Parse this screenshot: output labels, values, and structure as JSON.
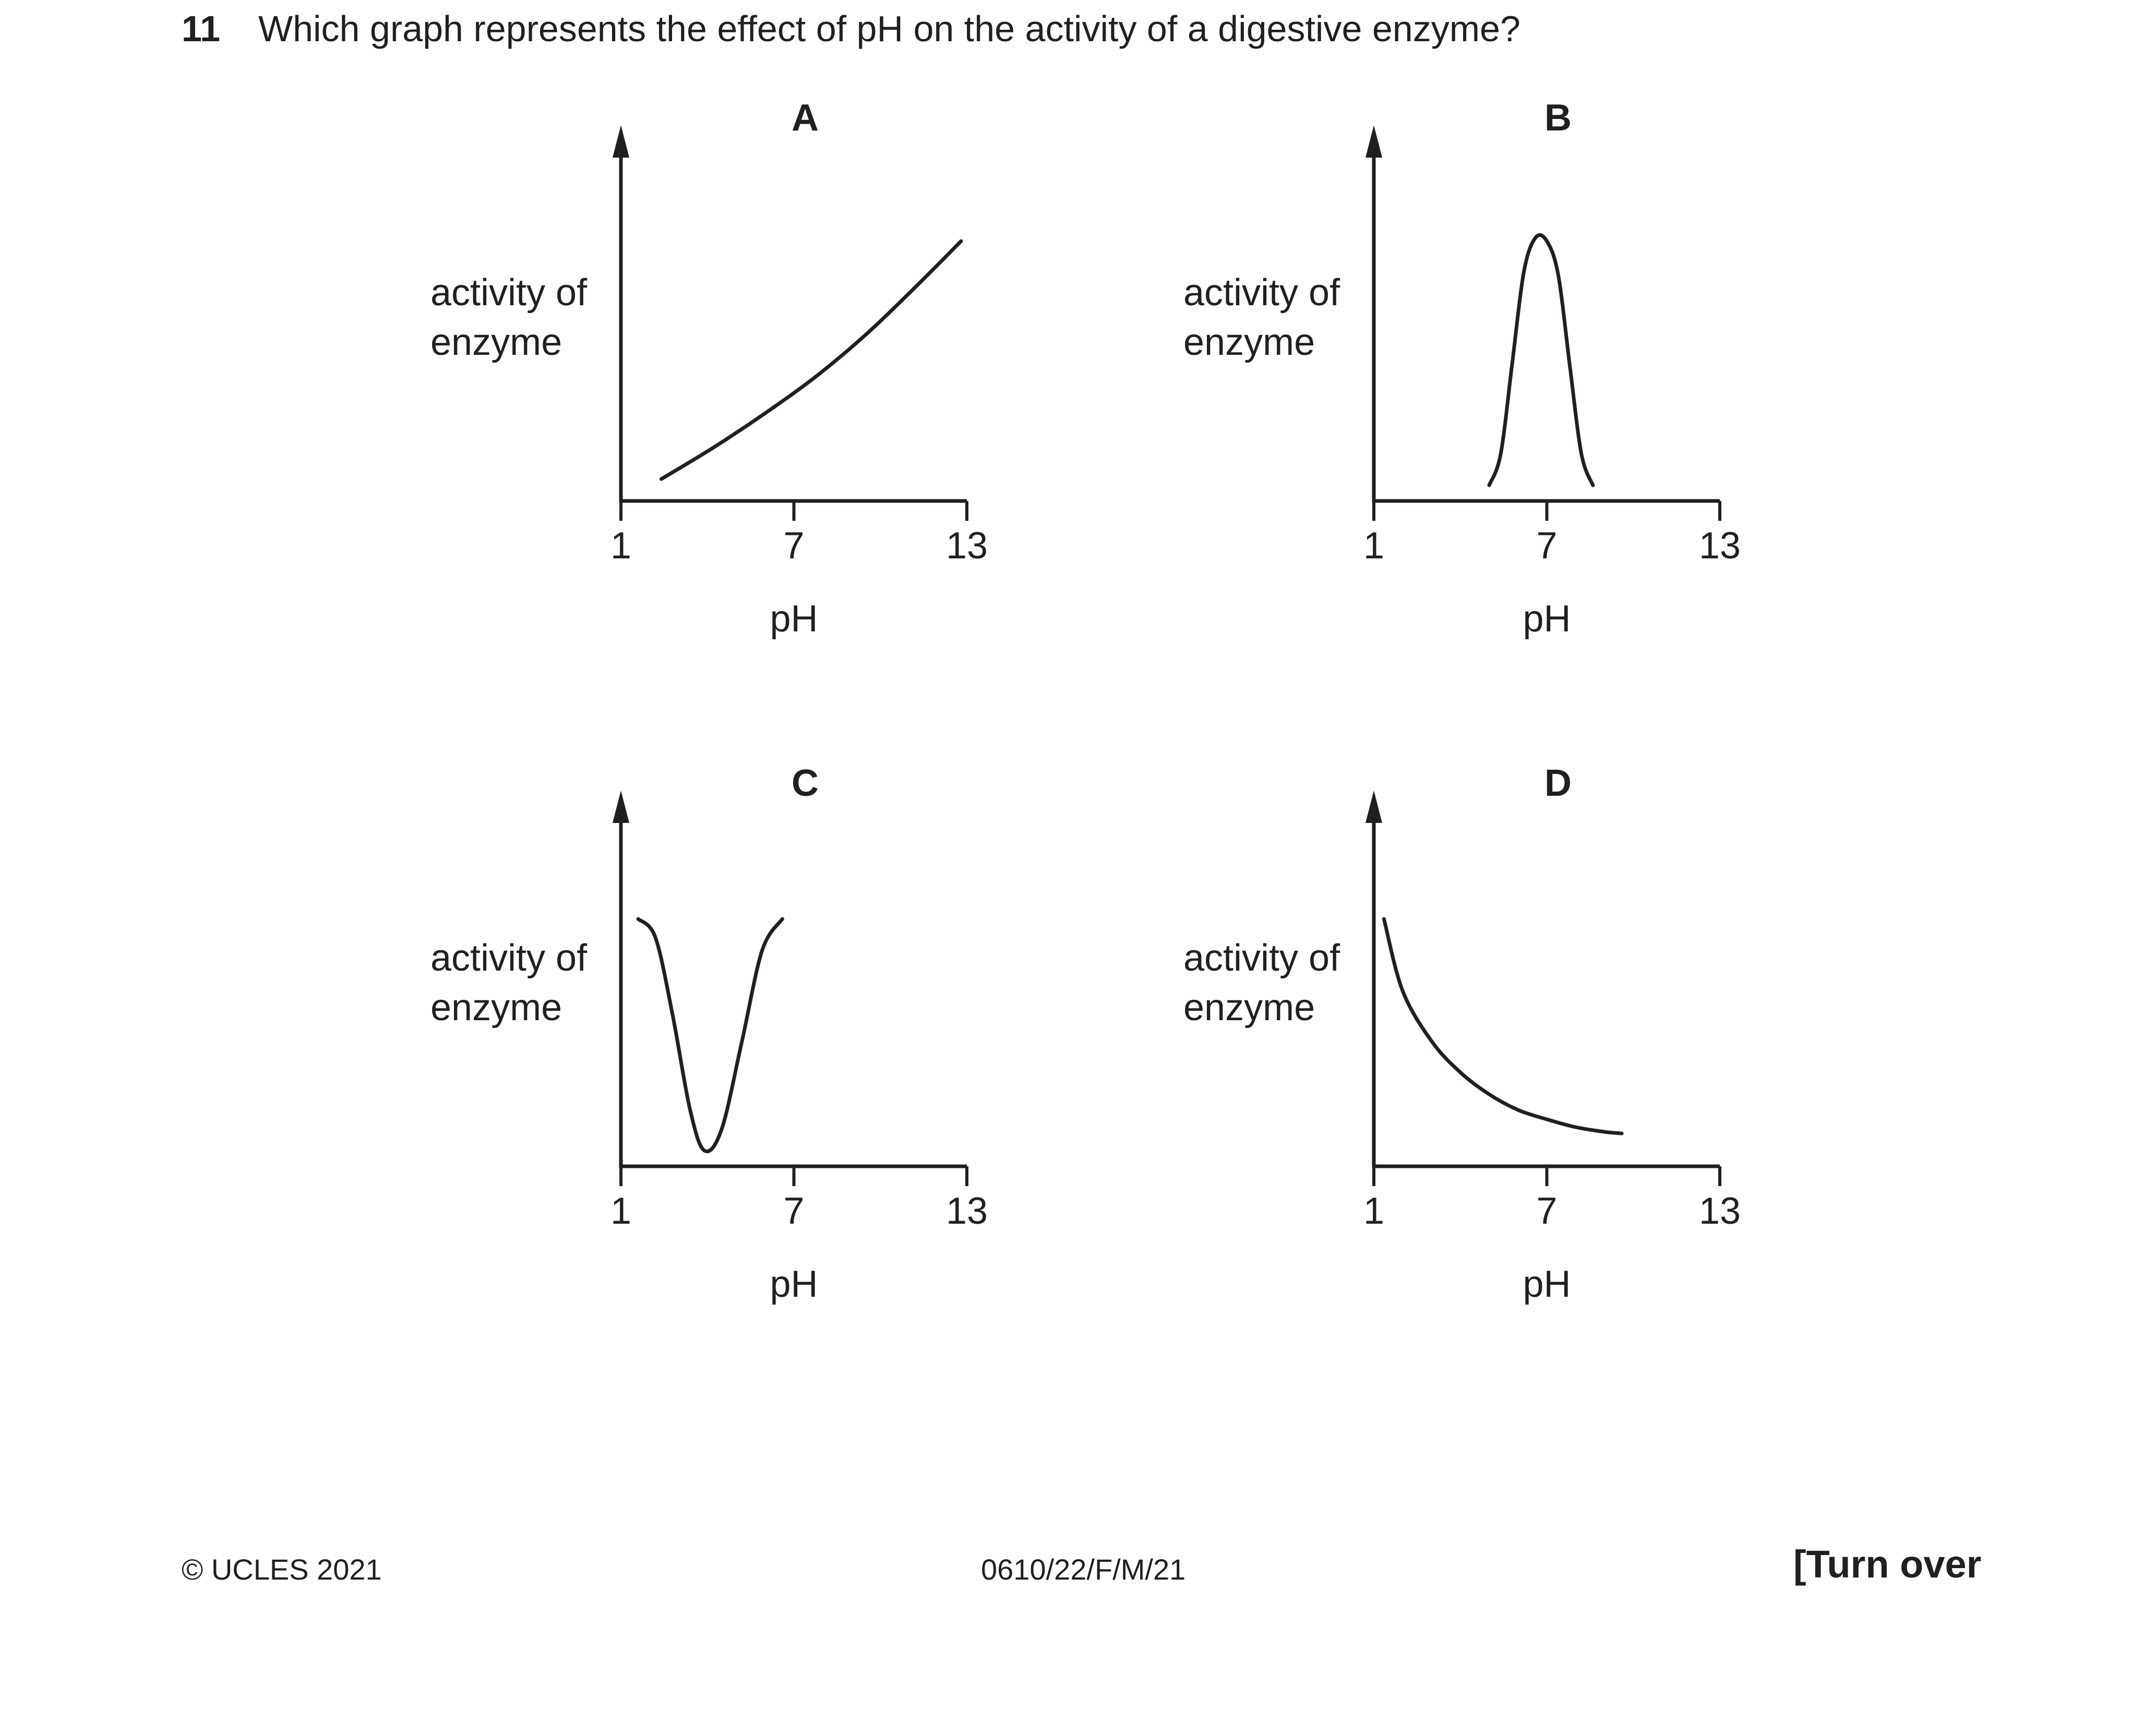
{
  "question": {
    "number": "11",
    "text": "Which graph represents the effect of pH on the activity of a digestive enzyme?"
  },
  "chart_data": [
    {
      "type": "line",
      "option": "A",
      "ylabel": [
        "activity of",
        "enzyme"
      ],
      "xlabel": "pH",
      "xticks": [
        1,
        7,
        13
      ],
      "xlim": [
        1,
        13
      ],
      "ylim": [
        0,
        11
      ],
      "series": [
        {
          "points": [
            [
              2.4,
              0.7
            ],
            [
              4.2,
              1.7
            ],
            [
              6.0,
              2.8
            ],
            [
              7.8,
              4.0
            ],
            [
              9.6,
              5.4
            ],
            [
              11.4,
              7.0
            ],
            [
              12.8,
              8.3
            ]
          ]
        }
      ]
    },
    {
      "type": "line",
      "option": "B",
      "ylabel": [
        "activity of",
        "enzyme"
      ],
      "xlabel": "pH",
      "xticks": [
        1,
        7,
        13
      ],
      "xlim": [
        1,
        13
      ],
      "ylim": [
        0,
        11
      ],
      "series": [
        {
          "points": [
            [
              5.0,
              0.5
            ],
            [
              5.4,
              1.5
            ],
            [
              5.8,
              4.4
            ],
            [
              6.2,
              7.3
            ],
            [
              6.6,
              8.4
            ],
            [
              7.0,
              8.3
            ],
            [
              7.4,
              7.2
            ],
            [
              7.8,
              4.3
            ],
            [
              8.2,
              1.5
            ],
            [
              8.6,
              0.5
            ]
          ]
        }
      ]
    },
    {
      "type": "line",
      "option": "C",
      "ylabel": [
        "activity of",
        "enzyme"
      ],
      "xlabel": "pH",
      "xticks": [
        1,
        7,
        13
      ],
      "xlim": [
        1,
        13
      ],
      "ylim": [
        0,
        11
      ],
      "series": [
        {
          "points": [
            [
              1.6,
              7.9
            ],
            [
              2.2,
              7.3
            ],
            [
              2.8,
              4.8
            ],
            [
              3.4,
              1.8
            ],
            [
              3.9,
              0.5
            ],
            [
              4.5,
              1.2
            ],
            [
              5.2,
              4.0
            ],
            [
              5.9,
              6.9
            ],
            [
              6.6,
              7.9
            ]
          ]
        }
      ]
    },
    {
      "type": "line",
      "option": "D",
      "ylabel": [
        "activity of",
        "enzyme"
      ],
      "xlabel": "pH",
      "xticks": [
        1,
        7,
        13
      ],
      "xlim": [
        1,
        13
      ],
      "ylim": [
        0,
        11
      ],
      "series": [
        {
          "points": [
            [
              1.35,
              7.9
            ],
            [
              2.0,
              5.6
            ],
            [
              3.0,
              4.0
            ],
            [
              4.0,
              3.0
            ],
            [
              5.0,
              2.3
            ],
            [
              6.0,
              1.8
            ],
            [
              7.0,
              1.5
            ],
            [
              8.0,
              1.25
            ],
            [
              9.0,
              1.1
            ],
            [
              9.6,
              1.05
            ]
          ]
        }
      ]
    }
  ],
  "footer": {
    "copyright": "© UCLES 2021",
    "code": "0610/22/F/M/21",
    "turn_over": "[Turn over"
  }
}
